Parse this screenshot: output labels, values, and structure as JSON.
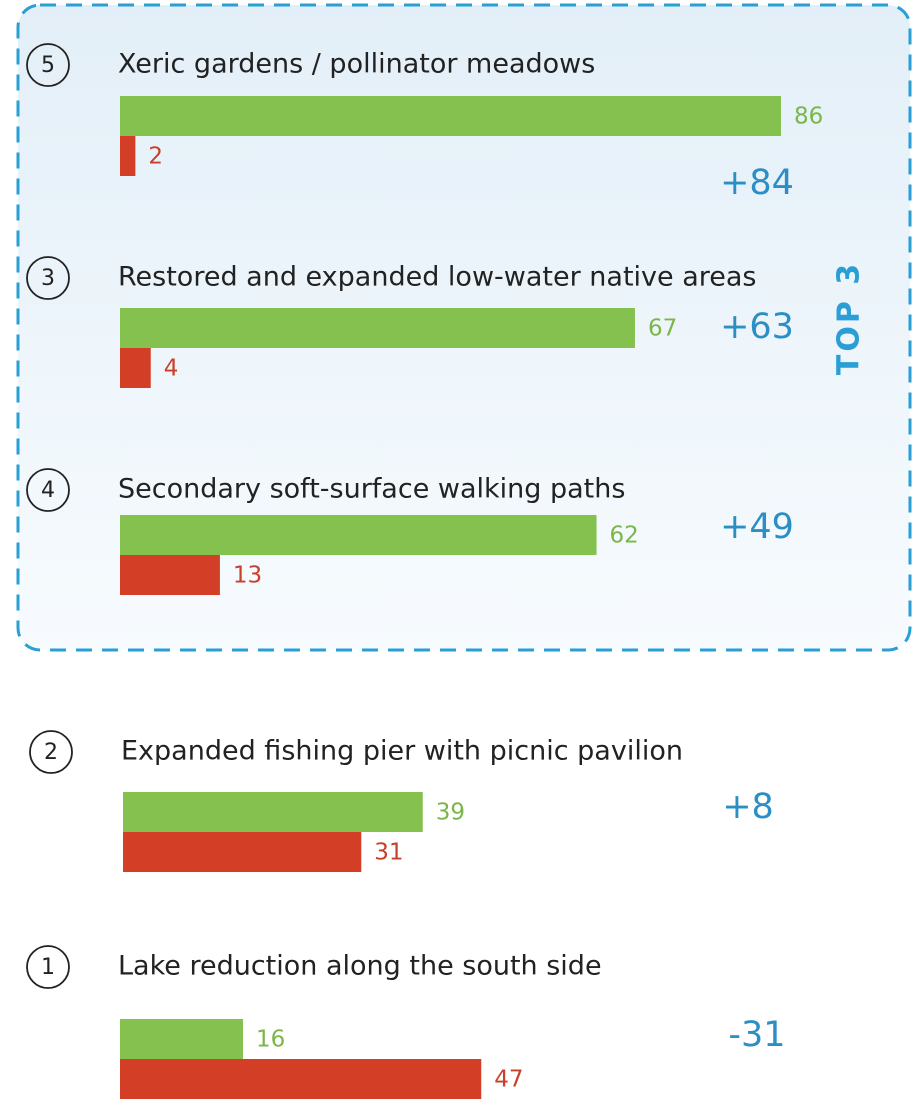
{
  "chart_data": {
    "type": "bar",
    "annotation": "TOP 3",
    "ranks": [
      5,
      3,
      4,
      2,
      1
    ],
    "categories": [
      "Xeric gardens / pollinator meadows",
      "Restored and expanded low-water native areas",
      "Secondary soft-surface walking paths",
      "Expanded fishing pier with picnic pavilion",
      "Lake reduction along the south side"
    ],
    "series": [
      {
        "color": "#84c14f",
        "label_color": "#7ab648",
        "values": [
          86,
          67,
          62,
          39,
          16
        ]
      },
      {
        "color": "#d23f26",
        "label_color": "#c9402a",
        "values": [
          2,
          4,
          13,
          31,
          47
        ]
      }
    ],
    "net": {
      "color": "#2b8fc6",
      "values": [
        84,
        63,
        49,
        8,
        -31
      ],
      "value_labels": [
        "+84",
        "+63",
        "+49",
        "+8",
        "-31"
      ]
    },
    "xlim": [
      0,
      86
    ]
  }
}
